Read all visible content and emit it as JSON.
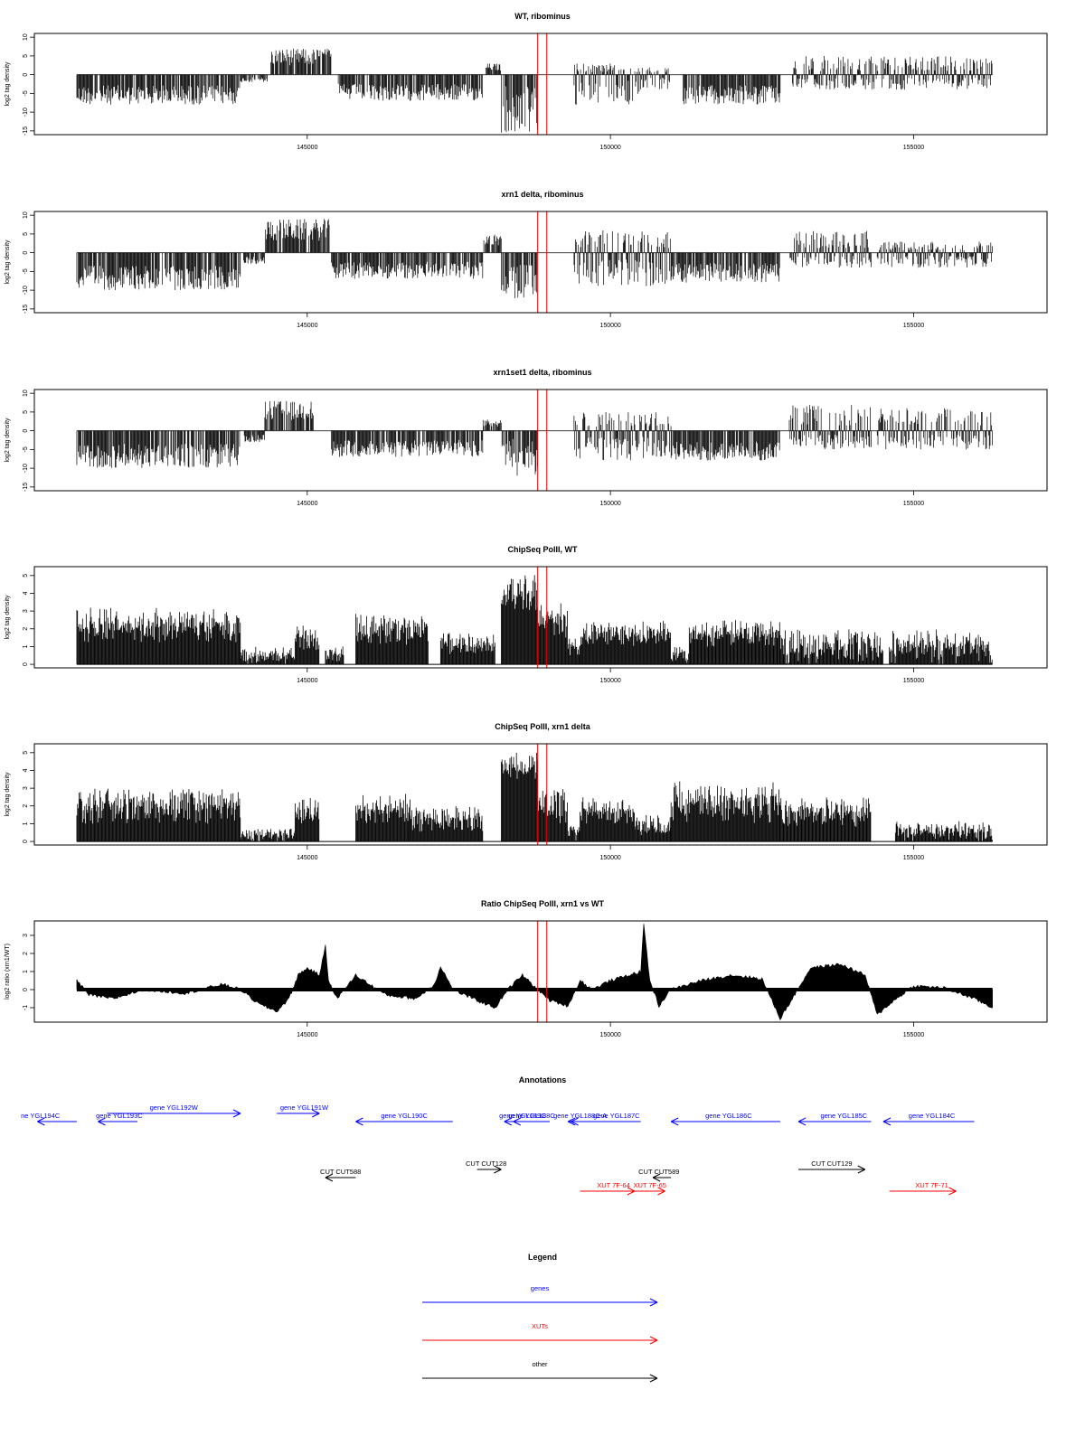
{
  "figure": {
    "x_ticks": [
      "145000",
      "150000",
      "155000"
    ],
    "tick_values": [
      145000,
      150000,
      155000
    ],
    "x_range": [
      140500,
      157200
    ],
    "data_extent": [
      141200,
      156300
    ],
    "vlines": [
      148800,
      148950
    ],
    "colors": {
      "genes": "#0000ff",
      "xuts": "#ff0000",
      "other": "#000000",
      "vline": "#ff0000"
    }
  },
  "chart_data": [
    {
      "type": "bar",
      "title": "WT, ribominus",
      "ylabel": "log2 tag density",
      "y_ticks": [
        "10",
        "5",
        "0",
        "-5",
        "-10",
        "-15"
      ],
      "ylim": [
        -16,
        11
      ],
      "regions": [
        {
          "x": [
            141200,
            143900
          ],
          "lo": -8,
          "hi": 0,
          "sign": -1
        },
        {
          "x": [
            143900,
            144350
          ],
          "lo": -2,
          "hi": 0,
          "sign": -1
        },
        {
          "x": [
            144400,
            145400
          ],
          "lo": 0,
          "hi": 7,
          "sign": 1
        },
        {
          "x": [
            145500,
            147900
          ],
          "lo": -7,
          "hi": 0,
          "sign": -1
        },
        {
          "x": [
            147950,
            148200
          ],
          "lo": 0,
          "hi": 3,
          "sign": 1
        },
        {
          "x": [
            148200,
            148800
          ],
          "lo": -16,
          "hi": -3,
          "sign": -1
        },
        {
          "x": [
            149400,
            150500
          ],
          "lo": -8,
          "hi": 3,
          "sign": 0
        },
        {
          "x": [
            150500,
            151000
          ],
          "lo": -4,
          "hi": 2,
          "sign": 0
        },
        {
          "x": [
            151200,
            152800
          ],
          "lo": -8,
          "hi": 0,
          "sign": -1
        },
        {
          "x": [
            153000,
            156300
          ],
          "lo": -4,
          "hi": 5,
          "sign": 0
        }
      ]
    },
    {
      "type": "bar",
      "title": "xrn1 delta, ribominus",
      "ylabel": "log2 tag density",
      "y_ticks": [
        "10",
        "5",
        "0",
        "-5",
        "-10",
        "-15"
      ],
      "ylim": [
        -16,
        11
      ],
      "regions": [
        {
          "x": [
            141200,
            143900
          ],
          "lo": -10,
          "hi": 0,
          "sign": -1
        },
        {
          "x": [
            143950,
            144300
          ],
          "lo": -3,
          "hi": 0,
          "sign": -1
        },
        {
          "x": [
            144300,
            145400
          ],
          "lo": 0,
          "hi": 9,
          "sign": 1
        },
        {
          "x": [
            145400,
            147900
          ],
          "lo": -7,
          "hi": 0,
          "sign": -1
        },
        {
          "x": [
            147900,
            148200
          ],
          "lo": 0,
          "hi": 5,
          "sign": 1
        },
        {
          "x": [
            148200,
            148800
          ],
          "lo": -14,
          "hi": -3,
          "sign": -1
        },
        {
          "x": [
            149400,
            151000
          ],
          "lo": -9,
          "hi": 6,
          "sign": 0
        },
        {
          "x": [
            151000,
            152800
          ],
          "lo": -8,
          "hi": 0,
          "sign": -1
        },
        {
          "x": [
            152950,
            154300
          ],
          "lo": -4,
          "hi": 6,
          "sign": 0
        },
        {
          "x": [
            154400,
            156300
          ],
          "lo": -4,
          "hi": 3,
          "sign": 0
        }
      ]
    },
    {
      "type": "bar",
      "title": "xrn1set1 delta, ribominus",
      "ylabel": "log2 tag density",
      "y_ticks": [
        "10",
        "5",
        "0",
        "-5",
        "-10",
        "-15"
      ],
      "ylim": [
        -16,
        11
      ],
      "regions": [
        {
          "x": [
            141200,
            143900
          ],
          "lo": -10,
          "hi": 0,
          "sign": -1
        },
        {
          "x": [
            143950,
            144300
          ],
          "lo": -3,
          "hi": 0,
          "sign": -1
        },
        {
          "x": [
            144300,
            145100
          ],
          "lo": 0,
          "hi": 8,
          "sign": 1
        },
        {
          "x": [
            145400,
            147900
          ],
          "lo": -7,
          "hi": 0,
          "sign": -1
        },
        {
          "x": [
            147900,
            148200
          ],
          "lo": 0,
          "hi": 3,
          "sign": 1
        },
        {
          "x": [
            148200,
            148800
          ],
          "lo": -12,
          "hi": -2,
          "sign": -1
        },
        {
          "x": [
            149400,
            151000
          ],
          "lo": -8,
          "hi": 5,
          "sign": 0
        },
        {
          "x": [
            151000,
            152800
          ],
          "lo": -8,
          "hi": 0,
          "sign": -1
        },
        {
          "x": [
            152950,
            154300
          ],
          "lo": -5,
          "hi": 7,
          "sign": 0
        },
        {
          "x": [
            154400,
            156300
          ],
          "lo": -5,
          "hi": 6,
          "sign": 0
        }
      ]
    },
    {
      "type": "bar",
      "title": "ChipSeq PolII, WT",
      "ylabel": "log2 tag density",
      "y_ticks": [
        "5",
        "4",
        "3",
        "2",
        "1",
        "0"
      ],
      "ylim": [
        -0.2,
        5.5
      ],
      "regions": [
        {
          "x": [
            141200,
            143900
          ],
          "lo": 1.2,
          "hi": 3.2
        },
        {
          "x": [
            143900,
            144800
          ],
          "lo": 0,
          "hi": 1
        },
        {
          "x": [
            144800,
            145200
          ],
          "lo": 0.8,
          "hi": 2.3
        },
        {
          "x": [
            145300,
            145600
          ],
          "lo": 0,
          "hi": 1
        },
        {
          "x": [
            145800,
            147000
          ],
          "lo": 1,
          "hi": 3
        },
        {
          "x": [
            147200,
            148100
          ],
          "lo": 0.5,
          "hi": 1.8
        },
        {
          "x": [
            148200,
            148800
          ],
          "lo": 3,
          "hi": 5.2
        },
        {
          "x": [
            148800,
            149300
          ],
          "lo": 1.5,
          "hi": 3.5
        },
        {
          "x": [
            149300,
            149500
          ],
          "lo": 0.5,
          "hi": 1.5
        },
        {
          "x": [
            149500,
            151000
          ],
          "lo": 1,
          "hi": 2.5
        },
        {
          "x": [
            151000,
            151300
          ],
          "lo": 0,
          "hi": 1
        },
        {
          "x": [
            151300,
            152800
          ],
          "lo": 1,
          "hi": 2.5
        },
        {
          "x": [
            152800,
            154500
          ],
          "lo": 0,
          "hi": 2
        },
        {
          "x": [
            154600,
            156300
          ],
          "lo": 0,
          "hi": 2
        }
      ]
    },
    {
      "type": "bar",
      "title": "ChipSeq PolII, xrn1 delta",
      "ylabel": "log2 tag density",
      "y_ticks": [
        "5",
        "4",
        "3",
        "2",
        "1",
        "0"
      ],
      "ylim": [
        -0.2,
        5.5
      ],
      "regions": [
        {
          "x": [
            141200,
            143900
          ],
          "lo": 1,
          "hi": 3
        },
        {
          "x": [
            143900,
            144800
          ],
          "lo": 0,
          "hi": 0.8
        },
        {
          "x": [
            144800,
            145200
          ],
          "lo": 1,
          "hi": 2.5
        },
        {
          "x": [
            145800,
            146700
          ],
          "lo": 1,
          "hi": 2.7
        },
        {
          "x": [
            146700,
            147900
          ],
          "lo": 0.5,
          "hi": 2
        },
        {
          "x": [
            148200,
            148800
          ],
          "lo": 3.5,
          "hi": 5
        },
        {
          "x": [
            148800,
            149300
          ],
          "lo": 1,
          "hi": 3
        },
        {
          "x": [
            149300,
            149500
          ],
          "lo": 0,
          "hi": 1
        },
        {
          "x": [
            149500,
            150400
          ],
          "lo": 1,
          "hi": 2.5
        },
        {
          "x": [
            150400,
            151000
          ],
          "lo": 0.3,
          "hi": 1.5
        },
        {
          "x": [
            151000,
            152800
          ],
          "lo": 1,
          "hi": 3.5
        },
        {
          "x": [
            152800,
            154300
          ],
          "lo": 0.8,
          "hi": 2.5
        },
        {
          "x": [
            154700,
            156300
          ],
          "lo": 0,
          "hi": 1.2
        }
      ]
    },
    {
      "type": "area",
      "title": "Ratio ChipSeq PolII, xrn1 vs WT",
      "ylabel": "log2 ratio (xrn1/WT)",
      "y_ticks": [
        "3",
        "2",
        "1",
        "0",
        "-1"
      ],
      "ylim": [
        -1.8,
        3.8
      ],
      "x": [
        141200,
        141400,
        141800,
        142300,
        143000,
        143600,
        143900,
        144200,
        144500,
        144700,
        144850,
        145000,
        145200,
        145300,
        145350,
        145500,
        145800,
        146300,
        146800,
        147100,
        147200,
        147400,
        147800,
        148100,
        148300,
        148550,
        148800,
        149000,
        149300,
        149500,
        149700,
        150000,
        150300,
        150500,
        150550,
        150650,
        150800,
        151000,
        151500,
        152000,
        152500,
        152800,
        153000,
        153300,
        153800,
        154200,
        154400,
        154600,
        155000,
        155500,
        156000,
        156300
      ],
      "values": [
        0.5,
        -0.3,
        -0.5,
        0,
        -0.2,
        0.3,
        0,
        -0.8,
        -1.2,
        -0.5,
        0.8,
        1.2,
        0.8,
        2.4,
        0.5,
        -0.5,
        0.8,
        -0.3,
        -0.5,
        0.3,
        1.3,
        0,
        -0.6,
        -1,
        0,
        0.8,
        0,
        -0.6,
        -0.9,
        0.5,
        0,
        0.5,
        0.8,
        1,
        3.6,
        0.5,
        -0.9,
        0,
        0.5,
        0.8,
        0.6,
        -1.6,
        -0.5,
        1.2,
        1.4,
        0.8,
        -1.4,
        -0.8,
        0.2,
        0.1,
        -0.5,
        -1
      ]
    }
  ],
  "annotations": {
    "title": "Annotations",
    "items": [
      {
        "label": "ne YGL194C",
        "kind": "genes",
        "x1": 141200,
        "x2": 140550,
        "row": 0,
        "lx": 140600
      },
      {
        "label": "gene YGL193C",
        "kind": "genes",
        "x1": 142200,
        "x2": 141550,
        "row": 0,
        "lx": 141900
      },
      {
        "label": "gene YGL192W",
        "kind": "genes",
        "x1": 141700,
        "x2": 143900,
        "row": -1,
        "lx": 142800
      },
      {
        "label": "gene YGL191W",
        "kind": "genes",
        "x1": 144500,
        "x2": 145200,
        "row": -1,
        "lx": 144950
      },
      {
        "label": "gene YGL190C",
        "kind": "genes",
        "x1": 147400,
        "x2": 145800,
        "row": 0,
        "lx": 146600
      },
      {
        "label": "gene YGL189C",
        "kind": "genes",
        "x1": 148800,
        "x2": 148250,
        "row": 0,
        "lx": 148550
      },
      {
        "label": "gene YGL188C",
        "kind": "genes",
        "x1": 149000,
        "x2": 148400,
        "row": 0,
        "lx": 148700
      },
      {
        "label": "gene YGL187C",
        "kind": "genes",
        "x1": 150500,
        "x2": 149300,
        "row": 0,
        "lx": 150100
      },
      {
        "label": "gene YGL188C-A",
        "kind": "genes",
        "x1": 149700,
        "x2": 149350,
        "row": 0,
        "lx": 149500
      },
      {
        "label": "gene YGL186C",
        "kind": "genes",
        "x1": 152800,
        "x2": 151000,
        "row": 0,
        "lx": 151950
      },
      {
        "label": "gene YGL185C",
        "kind": "genes",
        "x1": 154300,
        "x2": 153100,
        "row": 0,
        "lx": 153850
      },
      {
        "label": "gene YGL184C",
        "kind": "genes",
        "x1": 156000,
        "x2": 154500,
        "row": 0,
        "lx": 155300
      },
      {
        "label": "CUT CUT588",
        "kind": "other",
        "x1": 145800,
        "x2": 145300,
        "row": 2,
        "lx": 145550
      },
      {
        "label": "CUT CUT128",
        "kind": "other",
        "x1": 147800,
        "x2": 148200,
        "row": 1,
        "lx": 147950
      },
      {
        "label": "CUT CUT589",
        "kind": "other",
        "x1": 151000,
        "x2": 150700,
        "row": 2,
        "lx": 150800
      },
      {
        "label": "XUT 7F-64",
        "kind": "xuts",
        "x1": 149500,
        "x2": 150400,
        "row": 3,
        "lx": 150050
      },
      {
        "label": "XUT 7F-65",
        "kind": "xuts",
        "x1": 150350,
        "x2": 150900,
        "row": 3,
        "lx": 150650
      },
      {
        "label": "CUT CUT129",
        "kind": "other",
        "x1": 153100,
        "x2": 154200,
        "row": 1,
        "lx": 153650
      },
      {
        "label": "XUT 7F-71",
        "kind": "xuts",
        "x1": 154600,
        "x2": 155700,
        "row": 3,
        "lx": 155300
      }
    ]
  },
  "legend": {
    "title": "Legend",
    "items": [
      {
        "label": "genes",
        "kind": "genes"
      },
      {
        "label": "XUTs",
        "kind": "xuts"
      },
      {
        "label": "other",
        "kind": "other"
      }
    ]
  }
}
